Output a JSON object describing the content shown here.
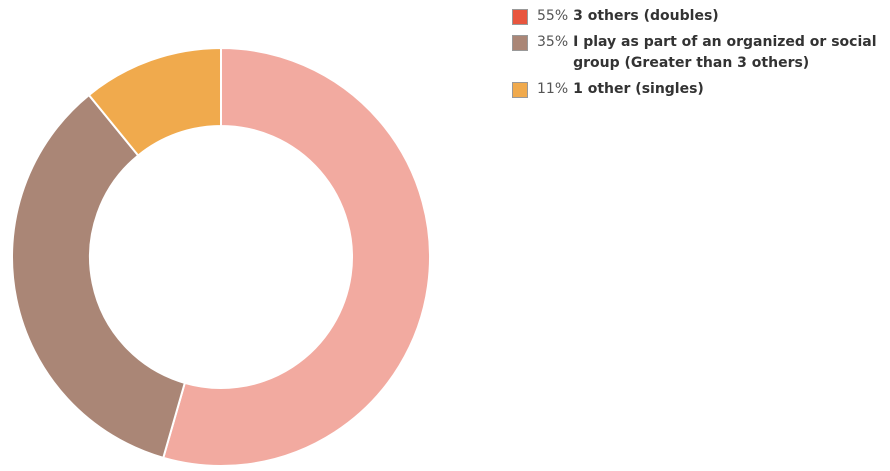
{
  "chart_data": {
    "type": "donut",
    "categories": [
      "3 others (doubles)",
      "I play as part of an organized or social group (Greater than 3 others)",
      "1 other (singles)"
    ],
    "values": [
      55,
      35,
      11
    ],
    "value_labels": [
      "55%",
      "35%",
      "11%"
    ],
    "colors": [
      "#f2aaa0",
      "#aa8676",
      "#f0aa4d"
    ],
    "legend_colors": [
      "#e8553e",
      "#aa8676",
      "#f0aa4d"
    ],
    "legend": "top-right"
  }
}
